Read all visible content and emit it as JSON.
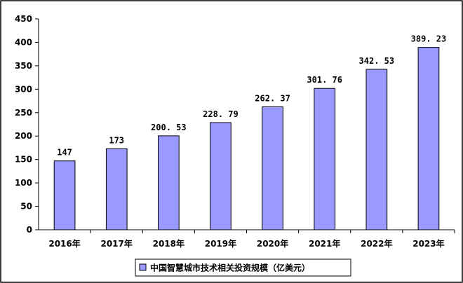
{
  "chart_data": {
    "type": "bar",
    "categories": [
      "2016年",
      "2017年",
      "2018年",
      "2019年",
      "2020年",
      "2021年",
      "2022年",
      "2023年"
    ],
    "series": [
      {
        "name": "中国智慧城市技术相关投资规模（亿美元）",
        "values": [
          147,
          173,
          200.53,
          228.79,
          262.37,
          301.76,
          342.53,
          389.23
        ],
        "value_labels": [
          "147",
          "173",
          "200. 53",
          "228. 79",
          "262. 37",
          "301. 76",
          "342. 53",
          "389. 23"
        ]
      }
    ],
    "y_ticks": [
      "0",
      "50",
      "100",
      "150",
      "200",
      "250",
      "300",
      "350",
      "400",
      "450"
    ],
    "ylim": [
      0,
      450
    ],
    "grid": false,
    "legend": "bottom",
    "colors": {
      "bar_fill": "#9999ff",
      "bar_stroke": "#000000",
      "frame": "#000000"
    }
  }
}
